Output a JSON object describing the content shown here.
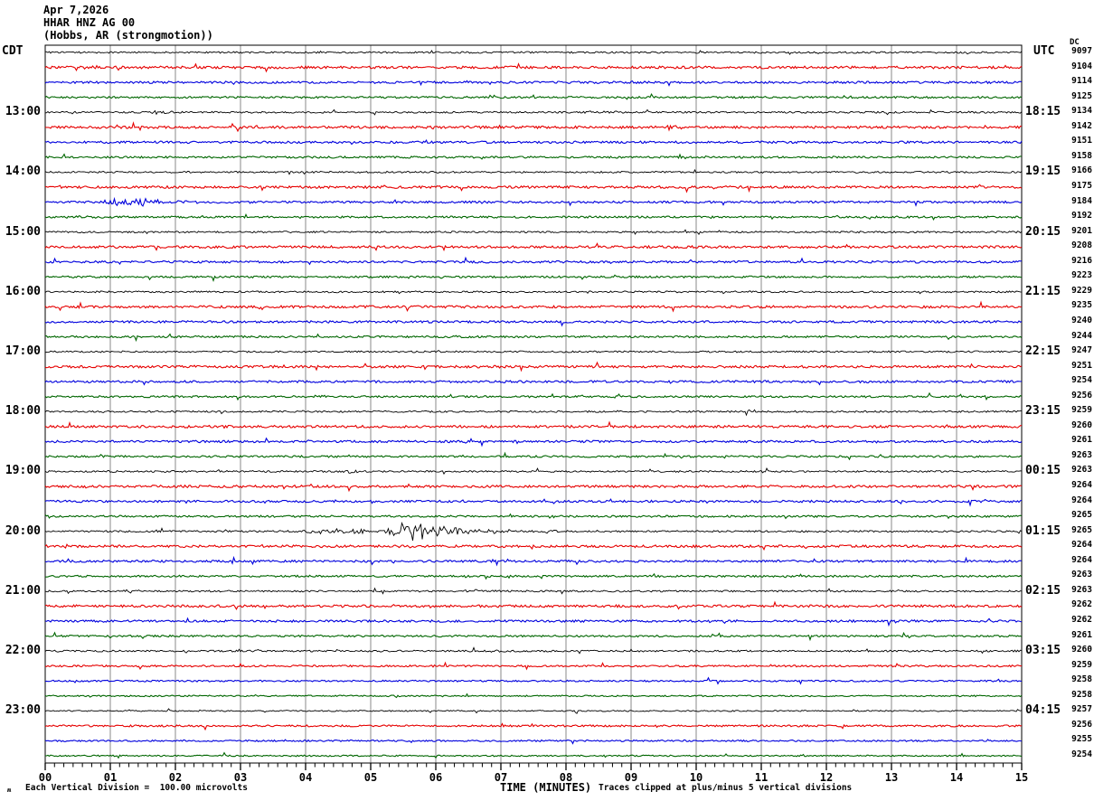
{
  "header": {
    "date": "Apr 7,2026",
    "station": "HHAR HNZ AG 00",
    "location": "(Hobbs, AR (strongmotion))"
  },
  "axes": {
    "left_timezone": "CDT",
    "right_timezone": "UTC",
    "right_column_top": "DC",
    "xlabel": "TIME (MINUTES)"
  },
  "footer": {
    "glyph": "ʍ",
    "left": "Each Vertical Division =  100.00 microvolts",
    "right": "Traces clipped at plus/minus 5 vertical divisions"
  },
  "chart_data": {
    "type": "line",
    "subtype": "helicorder-seismogram",
    "title": "HHAR HNZ AG 00 (Hobbs, AR (strongmotion)) Apr 7,2026",
    "xlabel": "TIME (MINUTES)",
    "x_range": [
      0,
      15
    ],
    "minutes_per_line": 15,
    "x_ticks": [
      "00",
      "01",
      "02",
      "03",
      "04",
      "05",
      "06",
      "07",
      "08",
      "09",
      "10",
      "11",
      "12",
      "13",
      "14",
      "15"
    ],
    "grid": true,
    "grid_color": "#888888",
    "trace_color_cycle": [
      "#000000",
      "#e60000",
      "#0000dd",
      "#006600"
    ],
    "clip_divisions": 5,
    "microvolts_per_division": 100.0,
    "rows": [
      {
        "left": "",
        "right": "",
        "count": 9097
      },
      {
        "left": "",
        "right": "",
        "count": 9104
      },
      {
        "left": "",
        "right": "",
        "count": 9114
      },
      {
        "left": "",
        "right": "",
        "count": 9125
      },
      {
        "left": "13:00",
        "right": "18:15",
        "count": 9134
      },
      {
        "left": "",
        "right": "",
        "count": 9142
      },
      {
        "left": "",
        "right": "",
        "count": 9151
      },
      {
        "left": "",
        "right": "",
        "count": 9158
      },
      {
        "left": "14:00",
        "right": "19:15",
        "count": 9166
      },
      {
        "left": "",
        "right": "",
        "count": 9175
      },
      {
        "left": "",
        "right": "",
        "count": 9184
      },
      {
        "left": "",
        "right": "",
        "count": 9192
      },
      {
        "left": "15:00",
        "right": "20:15",
        "count": 9201
      },
      {
        "left": "",
        "right": "",
        "count": 9208
      },
      {
        "left": "",
        "right": "",
        "count": 9216
      },
      {
        "left": "",
        "right": "",
        "count": 9223
      },
      {
        "left": "16:00",
        "right": "21:15",
        "count": 9229
      },
      {
        "left": "",
        "right": "",
        "count": 9235
      },
      {
        "left": "",
        "right": "",
        "count": 9240
      },
      {
        "left": "",
        "right": "",
        "count": 9244
      },
      {
        "left": "17:00",
        "right": "22:15",
        "count": 9247
      },
      {
        "left": "",
        "right": "",
        "count": 9251
      },
      {
        "left": "",
        "right": "",
        "count": 9254
      },
      {
        "left": "",
        "right": "",
        "count": 9256
      },
      {
        "left": "18:00",
        "right": "23:15",
        "count": 9259
      },
      {
        "left": "",
        "right": "",
        "count": 9260
      },
      {
        "left": "",
        "right": "",
        "count": 9261
      },
      {
        "left": "",
        "right": "",
        "count": 9263
      },
      {
        "left": "19:00",
        "right": "00:15",
        "count": 9263
      },
      {
        "left": "",
        "right": "",
        "count": 9264
      },
      {
        "left": "",
        "right": "",
        "count": 9264
      },
      {
        "left": "",
        "right": "",
        "count": 9265
      },
      {
        "left": "20:00",
        "right": "01:15",
        "count": 9265
      },
      {
        "left": "",
        "right": "",
        "count": 9264
      },
      {
        "left": "",
        "right": "",
        "count": 9264
      },
      {
        "left": "",
        "right": "",
        "count": 9263
      },
      {
        "left": "21:00",
        "right": "02:15",
        "count": 9263
      },
      {
        "left": "",
        "right": "",
        "count": 9262
      },
      {
        "left": "",
        "right": "",
        "count": 9262
      },
      {
        "left": "",
        "right": "",
        "count": 9261
      },
      {
        "left": "22:00",
        "right": "03:15",
        "count": 9260
      },
      {
        "left": "",
        "right": "",
        "count": 9259
      },
      {
        "left": "",
        "right": "",
        "count": 9258
      },
      {
        "left": "",
        "right": "",
        "count": 9258
      },
      {
        "left": "23:00",
        "right": "04:15",
        "count": 9257
      },
      {
        "left": "",
        "right": "",
        "count": 9256
      },
      {
        "left": "",
        "right": "",
        "count": 9255
      },
      {
        "left": "",
        "right": "",
        "count": 9254
      }
    ],
    "events": [
      {
        "row": 2,
        "start": 0.1,
        "end": 2.2,
        "peak": 0.7,
        "amp": 2.2,
        "desc": "slightly elevated noise"
      },
      {
        "row": 5,
        "start": 1.4,
        "end": 2.3,
        "peak": 1.7,
        "amp": 2.0,
        "desc": "minor noise patch"
      },
      {
        "row": 5,
        "start": 8.2,
        "end": 8.9,
        "peak": 8.45,
        "amp": 1.8,
        "desc": "minor noise patch"
      },
      {
        "row": 6,
        "start": 9.35,
        "end": 9.95,
        "peak": 9.6,
        "amp": 4.5,
        "desc": "small spike burst"
      },
      {
        "row": 11,
        "start": 0.6,
        "end": 3.2,
        "peak": 1.25,
        "amp": 6.0,
        "desc": "moderate burst on 14:30 CDT blue line"
      },
      {
        "row": 12,
        "start": 0.1,
        "end": 1.2,
        "peak": 0.4,
        "amp": 2.2,
        "desc": "minor noise"
      },
      {
        "row": 24,
        "start": 3.95,
        "end": 4.4,
        "peak": 4.1,
        "amp": 3.0,
        "desc": "small bump"
      },
      {
        "row": 29,
        "start": 4.5,
        "end": 5.0,
        "peak": 4.7,
        "amp": 3.5,
        "desc": "small spike"
      },
      {
        "row": 33,
        "start": 3.2,
        "end": 5.1,
        "peak": 4.9,
        "amp": 5.0,
        "desc": "event onset"
      },
      {
        "row": 33,
        "start": 5.05,
        "end": 7.6,
        "peak": 5.55,
        "amp": 14.0,
        "desc": "strong event on 20:00 CDT / 01:15 UTC line, near clipping"
      },
      {
        "row": 33,
        "start": 7.6,
        "end": 9.5,
        "peak": 7.7,
        "amp": 2.5,
        "desc": "event coda"
      },
      {
        "row": 37,
        "start": 0.7,
        "end": 2.1,
        "peak": 1.2,
        "amp": 1.8,
        "desc": "minor noise"
      },
      {
        "row": 37,
        "start": 6.3,
        "end": 7.4,
        "peak": 6.75,
        "amp": 3.2,
        "desc": "moderate thickening"
      },
      {
        "row": 41,
        "start": 6.6,
        "end": 7.2,
        "peak": 6.8,
        "amp": 1.8,
        "desc": "minor noise"
      }
    ]
  }
}
